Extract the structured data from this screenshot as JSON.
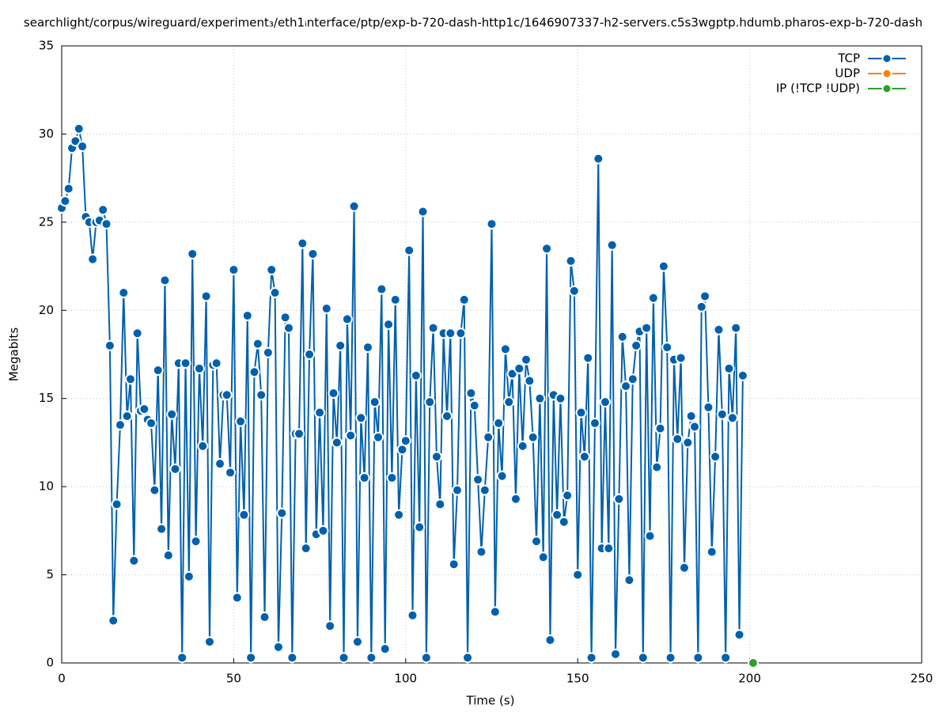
{
  "chart_data": {
    "type": "line",
    "title": "searchlight/corpus/wireguard/experiment₃/eth1ᵢnterface/ptp/exp-b-720-dash-http1c/1646907337-h2-servers.c5s3wgptp.hdumb.pharos-exp-b-720-dash",
    "x_label": "Time (s)",
    "y_label": "Megabits",
    "xlim": [
      0,
      250
    ],
    "xticks": [
      0,
      50,
      100,
      150,
      200,
      250
    ],
    "ylim": [
      0,
      35
    ],
    "yticks": [
      0,
      5,
      10,
      15,
      20,
      25,
      30,
      35
    ],
    "grid": true,
    "legend": "top-right",
    "series": [
      {
        "name": "TCP",
        "color": "#0060ad",
        "x": [
          0,
          1,
          2,
          3,
          4,
          5,
          6,
          7,
          8,
          9,
          10,
          11,
          12,
          13,
          14,
          15,
          16,
          17,
          18,
          19,
          20,
          21,
          22,
          23,
          24,
          25,
          26,
          27,
          28,
          29,
          30,
          31,
          32,
          33,
          34,
          35,
          36,
          37,
          38,
          39,
          40,
          41,
          42,
          43,
          44,
          45,
          46,
          47,
          48,
          49,
          50,
          51,
          52,
          53,
          54,
          55,
          56,
          57,
          58,
          59,
          60,
          61,
          62,
          63,
          64,
          65,
          66,
          67,
          68,
          69,
          70,
          71,
          72,
          73,
          74,
          75,
          76,
          77,
          78,
          79,
          80,
          81,
          82,
          83,
          84,
          85,
          86,
          87,
          88,
          89,
          90,
          91,
          92,
          93,
          94,
          95,
          96,
          97,
          98,
          99,
          100,
          101,
          102,
          103,
          104,
          105,
          106,
          107,
          108,
          109,
          110,
          111,
          112,
          113,
          114,
          115,
          116,
          117,
          118,
          119,
          120,
          121,
          122,
          123,
          124,
          125,
          126,
          127,
          128,
          129,
          130,
          131,
          132,
          133,
          134,
          135,
          136,
          137,
          138,
          139,
          140,
          141,
          142,
          143,
          144,
          145,
          146,
          147,
          148,
          149,
          150,
          151,
          152,
          153,
          154,
          155,
          156,
          157,
          158,
          159,
          160,
          161,
          162,
          163,
          164,
          165,
          166,
          167,
          168,
          169,
          170,
          171,
          172,
          173,
          174,
          175,
          176,
          177,
          178,
          179,
          180,
          181,
          182,
          183,
          184,
          185,
          186,
          187,
          188,
          189,
          190,
          191,
          192,
          193,
          194,
          195,
          196,
          197,
          198
        ],
        "values": [
          25.8,
          26.2,
          26.9,
          29.2,
          29.6,
          30.3,
          29.3,
          25.3,
          25.0,
          22.9,
          25.0,
          25.1,
          25.7,
          24.9,
          18.0,
          2.4,
          9.0,
          13.5,
          21.0,
          14.0,
          16.1,
          5.8,
          18.7,
          14.3,
          14.4,
          13.8,
          13.6,
          9.8,
          16.6,
          7.6,
          21.7,
          6.1,
          14.1,
          11.0,
          17.0,
          0.3,
          17.0,
          4.9,
          23.2,
          6.9,
          16.7,
          12.3,
          20.8,
          1.2,
          16.9,
          17.0,
          11.3,
          15.2,
          15.2,
          10.8,
          22.3,
          3.7,
          13.7,
          8.4,
          19.7,
          0.3,
          16.5,
          18.1,
          15.2,
          2.6,
          17.6,
          22.3,
          21.0,
          0.9,
          8.5,
          19.6,
          19.0,
          0.3,
          13.0,
          13.0,
          23.8,
          6.5,
          17.5,
          23.2,
          7.3,
          14.2,
          7.5,
          20.1,
          2.1,
          15.3,
          12.5,
          18.0,
          0.3,
          19.5,
          12.9,
          25.9,
          1.2,
          13.9,
          10.5,
          17.9,
          0.3,
          14.8,
          12.8,
          21.2,
          0.8,
          19.2,
          10.5,
          20.6,
          8.4,
          12.1,
          12.6,
          23.4,
          2.7,
          16.3,
          7.7,
          25.6,
          0.3,
          14.8,
          19.0,
          11.7,
          9.0,
          18.7,
          14.0,
          18.7,
          5.6,
          9.8,
          18.7,
          20.6,
          0.3,
          15.3,
          14.6,
          10.4,
          6.3,
          9.8,
          12.8,
          24.9,
          2.9,
          13.6,
          10.6,
          17.8,
          14.8,
          16.4,
          9.3,
          16.7,
          12.3,
          17.2,
          16.0,
          12.8,
          6.9,
          15.0,
          6.0,
          23.5,
          1.3,
          15.2,
          8.4,
          15.0,
          8.0,
          9.5,
          22.8,
          21.1,
          5.0,
          14.2,
          11.7,
          17.3,
          0.3,
          13.6,
          28.6,
          6.5,
          14.8,
          6.5,
          23.7,
          0.5,
          9.3,
          18.5,
          15.7,
          4.7,
          16.1,
          18.0,
          18.8,
          0.3,
          19.0,
          7.2,
          20.7,
          11.1,
          13.3,
          22.5,
          17.9,
          0.3,
          17.2,
          12.7,
          17.3,
          5.4,
          12.5,
          14.0,
          13.4,
          0.3,
          20.2,
          20.8,
          14.5,
          6.3,
          11.7,
          18.9,
          14.1,
          0.3,
          16.7,
          13.9,
          19.0,
          1.6,
          16.3
        ]
      },
      {
        "name": "UDP",
        "color": "#ff7f0e",
        "x": [],
        "values": []
      },
      {
        "name": "IP (!TCP  !UDP)",
        "color": "#2ca02c",
        "x": [
          201
        ],
        "values": [
          0
        ]
      }
    ]
  }
}
